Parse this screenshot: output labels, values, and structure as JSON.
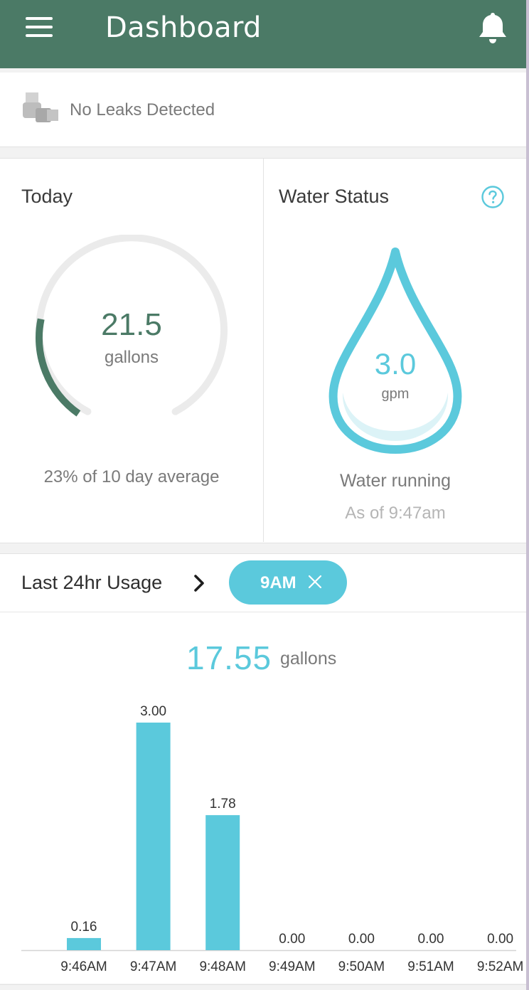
{
  "app_bar": {
    "title": "Dashboard",
    "menu_icon": "hamburger-menu-icon",
    "notification_icon": "bell-icon",
    "color": "#4b7a66"
  },
  "leak_status": {
    "icon": "pipe-icon",
    "text": "No Leaks Detected"
  },
  "today": {
    "title": "Today",
    "value": "21.5",
    "unit": "gallons",
    "percent_of_average": 0.23,
    "summary": "23% of 10 day average",
    "accent": "#4b7a66"
  },
  "water_status": {
    "title": "Water Status",
    "help_icon": "question-circle-icon",
    "value": "3.0",
    "unit": "gpm",
    "status": "Water running",
    "as_of": "As of 9:47am",
    "accent": "#5bc9dc"
  },
  "usage": {
    "title": "Last 24hr Usage",
    "chevron_icon": "chevron-right-icon",
    "filter_chip": {
      "label": "9AM",
      "close_icon": "close-icon"
    },
    "total_value": "17.55",
    "total_unit": "gallons"
  },
  "chart_data": {
    "type": "bar",
    "categories": [
      "9:46AM",
      "9:47AM",
      "9:48AM",
      "9:49AM",
      "9:50AM",
      "9:51AM",
      "9:52AM"
    ],
    "values": [
      0.16,
      3.0,
      1.78,
      0.0,
      0.0,
      0.0,
      0.0
    ],
    "labels": [
      "0.16",
      "3.00",
      "1.78",
      "0.00",
      "0.00",
      "0.00",
      "0.00"
    ],
    "ylim": [
      0,
      3.0
    ],
    "grid": false,
    "bar_color": "#5bc9dc"
  }
}
